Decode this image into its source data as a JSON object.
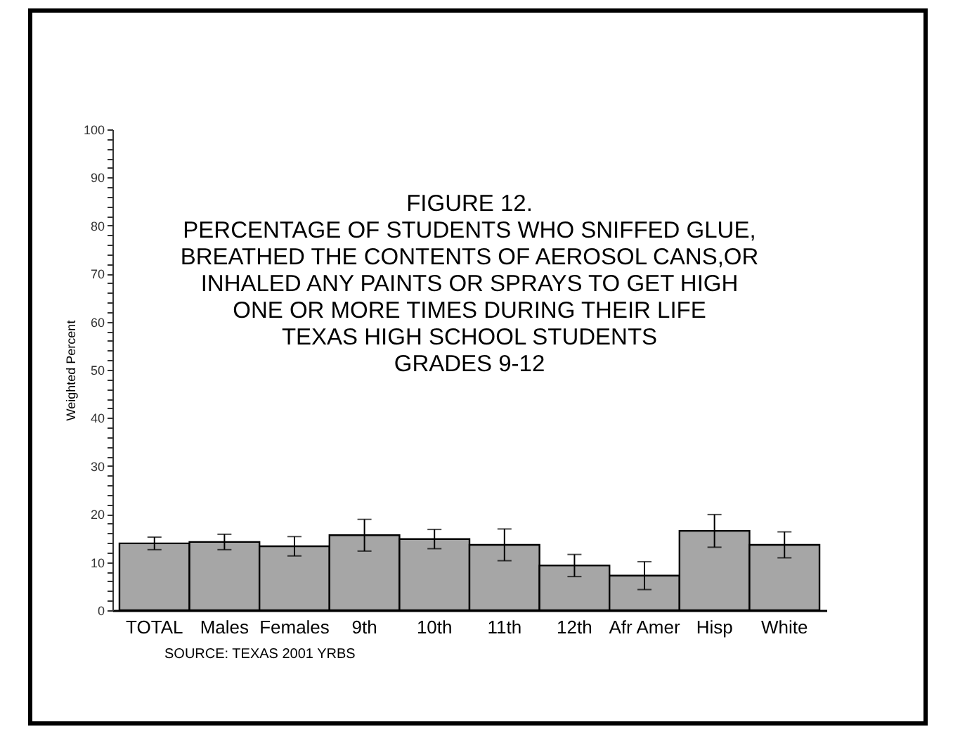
{
  "chart_data": {
    "type": "bar",
    "title": "FIGURE 12.\nPERCENTAGE OF STUDENTS WHO SNIFFED GLUE,\nBREATHED THE CONTENTS OF AEROSOL CANS,OR\nINHALED ANY PAINTS OR SPRAYS TO GET HIGH\nONE OR MORE TIMES DURING THEIR LIFE\nTEXAS HIGH  SCHOOL STUDENTS\nGRADES 9-12",
    "ylabel": "Weighted Percent",
    "annotations": [
      "SOURCE: TEXAS 2001 YRBS"
    ],
    "categories": [
      "TOTAL",
      null,
      "Males",
      "Females",
      null,
      "9th",
      "10th",
      "11th",
      "12th",
      null,
      "Afr Amer",
      "Hisp",
      "White"
    ],
    "values": [
      13.9,
      null,
      14.2,
      13.3,
      null,
      15.6,
      14.8,
      13.6,
      9.3,
      null,
      7.2,
      16.5,
      13.6
    ],
    "errors": [
      1.3,
      null,
      1.6,
      2.0,
      null,
      3.3,
      2.0,
      3.3,
      2.3,
      null,
      2.9,
      3.4,
      2.7
    ],
    "color": "#a6a6a6",
    "ylim": [
      0,
      100
    ],
    "yticks": [
      0,
      {
        "value": 2,
        "label": null
      },
      {
        "value": 4,
        "label": null
      },
      {
        "value": 6,
        "label": null
      },
      {
        "value": 8,
        "label": null
      },
      10,
      {
        "value": 12,
        "label": null
      },
      {
        "value": 14,
        "label": null
      },
      {
        "value": 16,
        "label": null
      },
      {
        "value": 18,
        "label": null
      },
      20,
      {
        "value": 22,
        "label": null
      },
      {
        "value": 24,
        "label": null
      },
      {
        "value": 26,
        "label": null
      },
      {
        "value": 28,
        "label": null
      },
      30,
      {
        "value": 32,
        "label": null
      },
      {
        "value": 34,
        "label": null
      },
      {
        "value": 36,
        "label": null
      },
      {
        "value": 38,
        "label": null
      },
      40,
      {
        "value": 42,
        "label": null
      },
      {
        "value": 44,
        "label": null
      },
      {
        "value": 46,
        "label": null
      },
      {
        "value": 48,
        "label": null
      },
      50,
      {
        "value": 52,
        "label": null
      },
      {
        "value": 54,
        "label": null
      },
      {
        "value": 56,
        "label": null
      },
      {
        "value": 58,
        "label": null
      },
      60,
      {
        "value": 62,
        "label": null
      },
      {
        "value": 64,
        "label": null
      },
      {
        "value": 66,
        "label": null
      },
      {
        "value": 68,
        "label": null
      },
      70,
      {
        "value": 72,
        "label": null
      },
      {
        "value": 74,
        "label": null
      },
      {
        "value": 76,
        "label": null
      },
      {
        "value": 78,
        "label": null
      },
      80,
      {
        "value": 82,
        "label": null
      },
      {
        "value": 84,
        "label": null
      },
      {
        "value": 86,
        "label": null
      },
      {
        "value": 88,
        "label": null
      },
      90,
      {
        "value": 92,
        "label": null
      },
      {
        "value": 94,
        "label": null
      },
      {
        "value": 96,
        "label": null
      },
      {
        "value": 98,
        "label": null
      },
      100
    ],
    "grid": false
  }
}
